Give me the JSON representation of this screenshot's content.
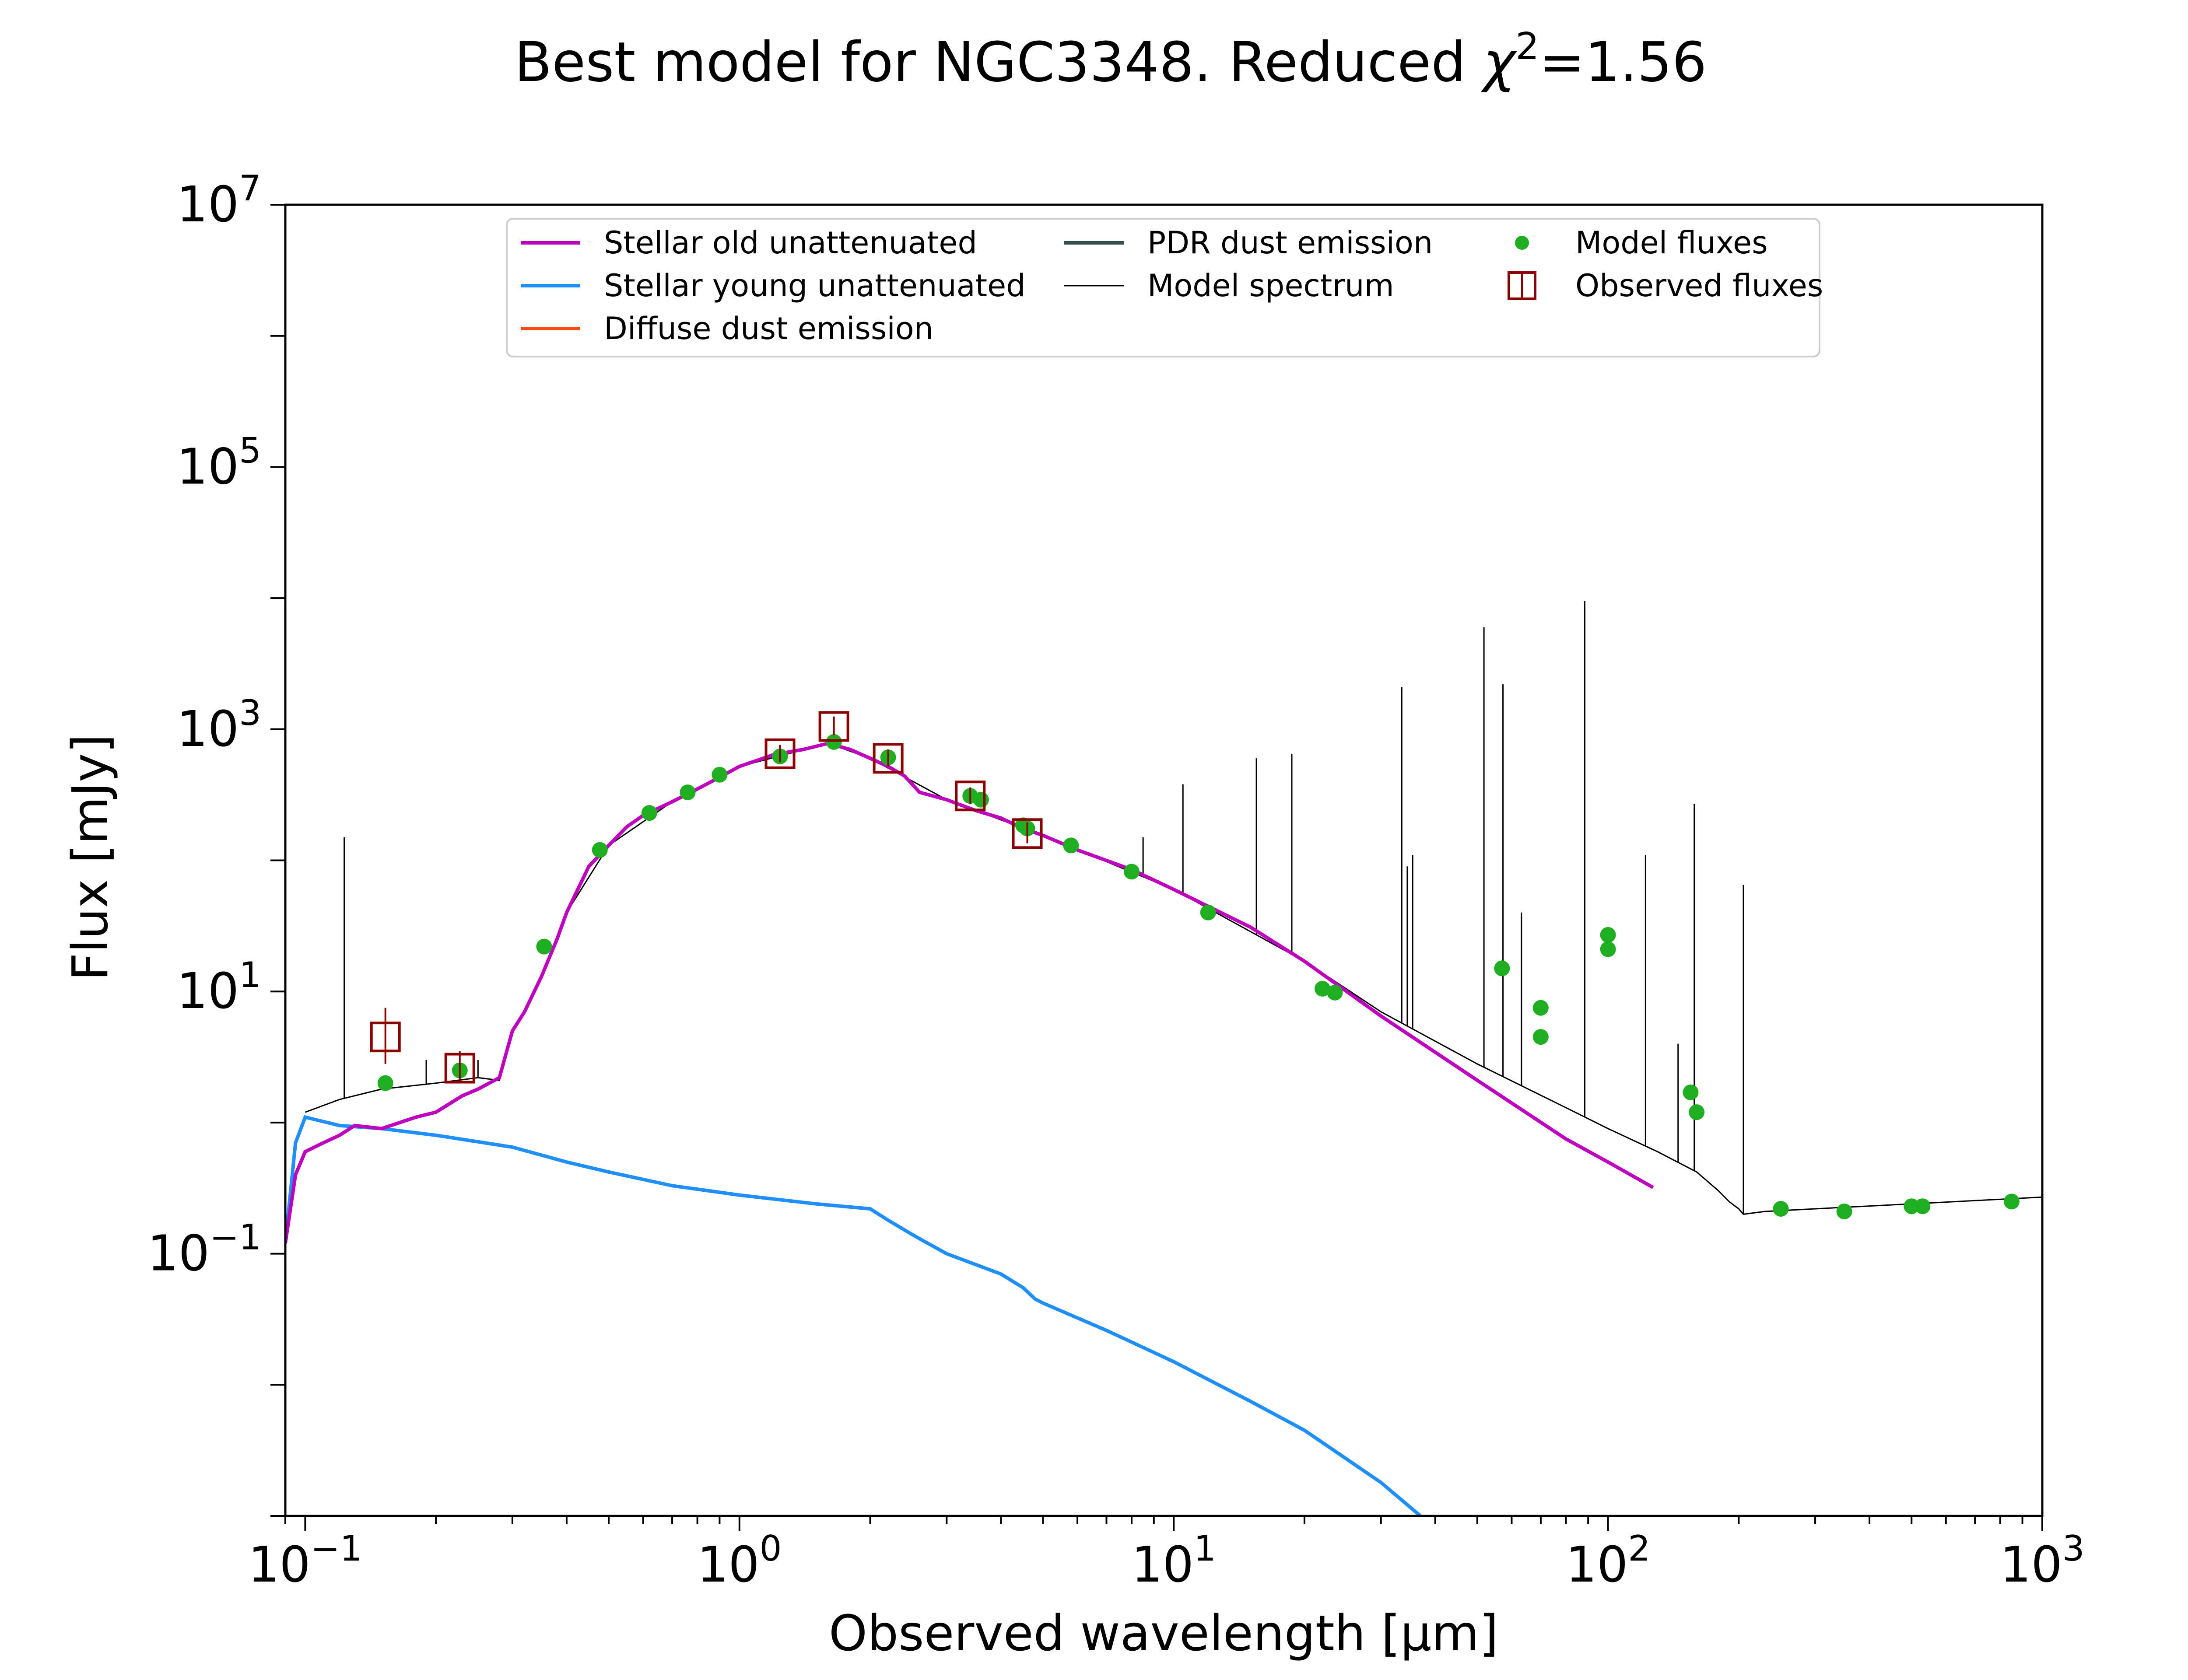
{
  "chart_data": {
    "type": "line",
    "title_prefix": "Best model for NGC3348. Reduced ",
    "title_chi": "χ",
    "title_sup": "2",
    "title_suffix": "=1.56",
    "xlabel": "Observed wavelength [μm]",
    "ylabel": "Flux [mJy]",
    "xscale": "log",
    "yscale": "log",
    "xlim": [
      0.09,
      1000
    ],
    "ylim": [
      0.001,
      10000000
    ],
    "grid": false,
    "legend_position": "top-center",
    "x_ticks": [
      {
        "value": 0.1,
        "base": "10",
        "exp": "−1"
      },
      {
        "value": 1,
        "base": "10",
        "exp": "0"
      },
      {
        "value": 10,
        "base": "10",
        "exp": "1"
      },
      {
        "value": 100,
        "base": "10",
        "exp": "2"
      },
      {
        "value": 1000,
        "base": "10",
        "exp": "3"
      }
    ],
    "y_ticks": [
      {
        "value": 0.1,
        "base": "10",
        "exp": "−1"
      },
      {
        "value": 10,
        "base": "10",
        "exp": "1"
      },
      {
        "value": 1000,
        "base": "10",
        "exp": "3"
      },
      {
        "value": 100000,
        "base": "10",
        "exp": "5"
      },
      {
        "value": 10000000,
        "base": "10",
        "exp": "7"
      }
    ],
    "series": [
      {
        "name": "Stellar old unattenuated",
        "color": "#bf00bf",
        "kind": "line",
        "x": [
          0.09,
          0.095,
          0.1,
          0.11,
          0.12,
          0.13,
          0.15,
          0.18,
          0.2,
          0.23,
          0.25,
          0.28,
          0.3,
          0.32,
          0.35,
          0.38,
          0.4,
          0.45,
          0.5,
          0.55,
          0.6,
          0.7,
          0.8,
          0.9,
          1.0,
          1.2,
          1.4,
          1.6,
          1.8,
          2.0,
          2.2,
          2.4,
          2.6,
          3.0,
          3.5,
          4.0,
          4.5,
          5.0,
          6.0,
          8.0,
          10,
          15,
          20,
          30,
          50,
          80,
          100,
          127
        ],
        "y": [
          0.12,
          0.4,
          0.6,
          0.7,
          0.8,
          0.95,
          0.9,
          1.1,
          1.2,
          1.6,
          1.8,
          2.2,
          5,
          7,
          13,
          25,
          40,
          90,
          130,
          180,
          220,
          280,
          350,
          430,
          520,
          640,
          700,
          780,
          700,
          600,
          520,
          440,
          330,
          290,
          240,
          210,
          175,
          155,
          120,
          85,
          60,
          31,
          17,
          6.5,
          2.1,
          0.75,
          0.5,
          0.32
        ]
      },
      {
        "name": "Stellar young unattenuated",
        "color": "#1f8fff",
        "kind": "line",
        "x": [
          0.09,
          0.095,
          0.1,
          0.12,
          0.15,
          0.2,
          0.3,
          0.4,
          0.5,
          0.7,
          1.0,
          1.5,
          2.0,
          2.2,
          2.5,
          2.6,
          3.0,
          4.0,
          4.5,
          4.8,
          5.0,
          7,
          10,
          15,
          20,
          30,
          37
        ],
        "y": [
          0.12,
          0.7,
          1.1,
          0.95,
          0.9,
          0.8,
          0.65,
          0.5,
          0.42,
          0.33,
          0.28,
          0.24,
          0.22,
          0.18,
          0.14,
          0.13,
          0.1,
          0.07,
          0.055,
          0.045,
          0.042,
          0.026,
          0.015,
          0.0075,
          0.0045,
          0.0018,
          0.001
        ]
      },
      {
        "name": "Diffuse dust emission",
        "color": "#ff4a10",
        "kind": "line",
        "x": [],
        "y": []
      },
      {
        "name": "PDR dust emission",
        "color": "#2f4f4f",
        "kind": "line",
        "x": [],
        "y": []
      },
      {
        "name": "Model spectrum",
        "color": "#000000",
        "kind": "line",
        "x": [
          0.1,
          0.12,
          0.15,
          0.2,
          0.25,
          0.28,
          0.3,
          0.32,
          0.35,
          0.4,
          0.5,
          0.7,
          1.0,
          1.6,
          2.0,
          3.0,
          5.0,
          10,
          20,
          30,
          50,
          80,
          100,
          130,
          160,
          180,
          190,
          200,
          205,
          230,
          300,
          500,
          1000
        ],
        "y": [
          1.2,
          1.5,
          1.8,
          2.0,
          2.2,
          2.1,
          5,
          7,
          13,
          40,
          130,
          280,
          520,
          780,
          600,
          290,
          155,
          60,
          17,
          7,
          2.8,
          1.3,
          0.9,
          0.6,
          0.42,
          0.3,
          0.25,
          0.22,
          0.2,
          0.21,
          0.22,
          0.24,
          0.27
        ],
        "lines": [
          {
            "x": 0.123,
            "y": 150
          },
          {
            "x": 0.19,
            "y": 3
          },
          {
            "x": 0.25,
            "y": 3
          },
          {
            "x": 8.5,
            "y": 150
          },
          {
            "x": 10.5,
            "y": 380
          },
          {
            "x": 15.5,
            "y": 600
          },
          {
            "x": 18.7,
            "y": 650
          },
          {
            "x": 33.5,
            "y": 2100
          },
          {
            "x": 34.5,
            "y": 90
          },
          {
            "x": 35.5,
            "y": 110
          },
          {
            "x": 51.8,
            "y": 6000
          },
          {
            "x": 57.3,
            "y": 2200
          },
          {
            "x": 63.2,
            "y": 40
          },
          {
            "x": 88.4,
            "y": 9500
          },
          {
            "x": 122,
            "y": 110
          },
          {
            "x": 145,
            "y": 4
          },
          {
            "x": 158,
            "y": 270
          },
          {
            "x": 205,
            "y": 65
          }
        ]
      },
      {
        "name": "Model fluxes",
        "color": "#1fae1f",
        "kind": "points",
        "x": [
          0.153,
          0.227,
          0.355,
          0.477,
          0.62,
          0.76,
          0.9,
          1.24,
          1.65,
          2.2,
          3.4,
          3.6,
          4.5,
          4.6,
          5.8,
          8.0,
          12,
          22,
          23.5,
          57,
          70,
          70,
          100,
          100,
          155,
          160,
          250,
          350,
          500,
          530,
          850
        ],
        "y": [
          2.0,
          2.5,
          22,
          120,
          230,
          330,
          450,
          620,
          800,
          610,
          310,
          290,
          185,
          175,
          130,
          82,
          40,
          10.5,
          9.8,
          15,
          7.5,
          4.5,
          27,
          21,
          1.7,
          1.2,
          0.22,
          0.21,
          0.23,
          0.23,
          0.25
        ]
      },
      {
        "name": "Observed fluxes",
        "color": "#8b0000",
        "kind": "squares",
        "x": [
          0.153,
          0.227,
          1.24,
          1.65,
          2.2,
          3.4,
          4.6
        ],
        "y": [
          4.5,
          2.6,
          650,
          1050,
          600,
          310,
          160
        ],
        "err_hi": [
          7.5,
          3.5,
          760,
          1250,
          700,
          360,
          195
        ],
        "err_lo": [
          2.8,
          2.0,
          560,
          900,
          520,
          270,
          135
        ]
      }
    ]
  }
}
